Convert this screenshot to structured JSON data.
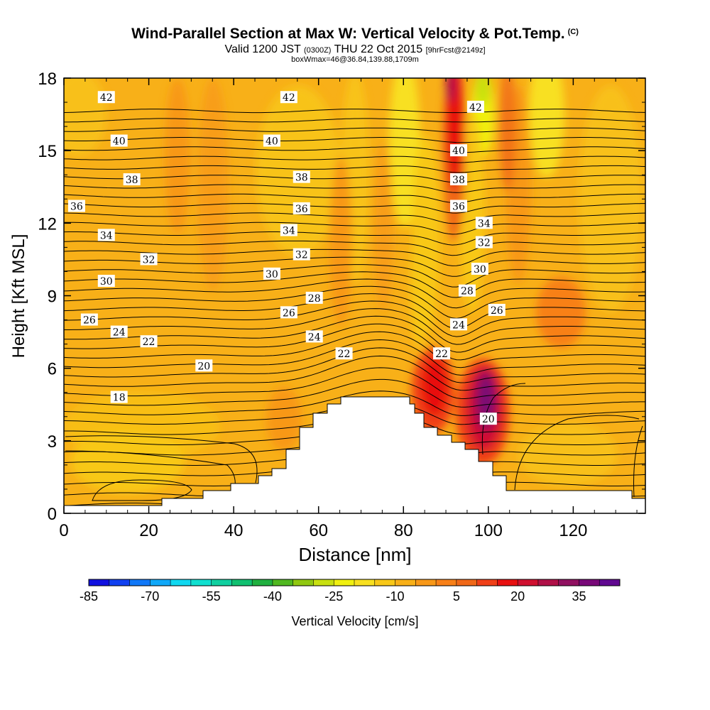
{
  "header": {
    "title": "Wind-Parallel Section at Max W: Vertical Velocity & Pot.Temp.",
    "title_mark": "(C)",
    "valid_prefix": "Valid 1200 JST",
    "valid_utc": "(0300Z)",
    "valid_date": "THU 22 Oct 2015",
    "forecast_tag": "[9hrFcst@2149z]",
    "subtitle": "boxWmax=46@36.84,139.88,1709m"
  },
  "chart_data": {
    "type": "heatmap",
    "xlabel": "Distance [nm]",
    "ylabel": "Height [Kft MSL]",
    "xlim": [
      0,
      137
    ],
    "ylim": [
      0,
      18
    ],
    "x_ticks": [
      "0",
      "20",
      "40",
      "60",
      "80",
      "100",
      "120"
    ],
    "y_ticks": [
      "0",
      "3",
      "6",
      "9",
      "12",
      "15",
      "18"
    ],
    "colorbar": {
      "label": "Vertical Velocity [cm/s]",
      "tick_labels": [
        "-85",
        "-70",
        "-55",
        "-40",
        "-25",
        "-10",
        "5",
        "20",
        "35"
      ],
      "tick_values": [
        -85,
        -70,
        -55,
        -40,
        -25,
        -10,
        5,
        20,
        35
      ],
      "colors": [
        "#1010e0",
        "#1040f0",
        "#1078f8",
        "#10a8f8",
        "#10d8f0",
        "#10e0d0",
        "#10d0a0",
        "#10c070",
        "#20b040",
        "#50b820",
        "#90c810",
        "#c8e010",
        "#f0f010",
        "#f8e020",
        "#f8c818",
        "#f8b018",
        "#f89818",
        "#f88018",
        "#f06818",
        "#f04018",
        "#e81010",
        "#d01030",
        "#b01048",
        "#901060",
        "#780878",
        "#600890"
      ],
      "min": -85,
      "step": 5
    },
    "contour_labels": [
      {
        "x": 10,
        "y": 17.2,
        "t": "42"
      },
      {
        "x": 53,
        "y": 17.2,
        "t": "42"
      },
      {
        "x": 97,
        "y": 16.8,
        "t": "42"
      },
      {
        "x": 13,
        "y": 15.4,
        "t": "40"
      },
      {
        "x": 49,
        "y": 15.4,
        "t": "40"
      },
      {
        "x": 93,
        "y": 15.0,
        "t": "40"
      },
      {
        "x": 16,
        "y": 13.8,
        "t": "38"
      },
      {
        "x": 56,
        "y": 13.9,
        "t": "38"
      },
      {
        "x": 93,
        "y": 13.8,
        "t": "38"
      },
      {
        "x": 3,
        "y": 12.7,
        "t": "36"
      },
      {
        "x": 56,
        "y": 12.6,
        "t": "36"
      },
      {
        "x": 93,
        "y": 12.7,
        "t": "36"
      },
      {
        "x": 99,
        "y": 12.0,
        "t": "34"
      },
      {
        "x": 10,
        "y": 11.5,
        "t": "34"
      },
      {
        "x": 53,
        "y": 11.7,
        "t": "34"
      },
      {
        "x": 99,
        "y": 11.2,
        "t": "32"
      },
      {
        "x": 20,
        "y": 10.5,
        "t": "32"
      },
      {
        "x": 56,
        "y": 10.7,
        "t": "32"
      },
      {
        "x": 98,
        "y": 10.1,
        "t": "30"
      },
      {
        "x": 10,
        "y": 9.6,
        "t": "30"
      },
      {
        "x": 49,
        "y": 9.9,
        "t": "30"
      },
      {
        "x": 59,
        "y": 8.9,
        "t": "28"
      },
      {
        "x": 95,
        "y": 9.2,
        "t": "28"
      },
      {
        "x": 102,
        "y": 8.4,
        "t": "26"
      },
      {
        "x": 6,
        "y": 8.0,
        "t": "26"
      },
      {
        "x": 53,
        "y": 8.3,
        "t": "26"
      },
      {
        "x": 93,
        "y": 7.8,
        "t": "24"
      },
      {
        "x": 13,
        "y": 7.5,
        "t": "24"
      },
      {
        "x": 59,
        "y": 7.3,
        "t": "24"
      },
      {
        "x": 20,
        "y": 7.1,
        "t": "22"
      },
      {
        "x": 66,
        "y": 6.6,
        "t": "22"
      },
      {
        "x": 89,
        "y": 6.6,
        "t": "22"
      },
      {
        "x": 33,
        "y": 6.1,
        "t": "20"
      },
      {
        "x": 100,
        "y": 3.9,
        "t": "20"
      },
      {
        "x": 13,
        "y": 4.8,
        "t": "18"
      }
    ]
  }
}
